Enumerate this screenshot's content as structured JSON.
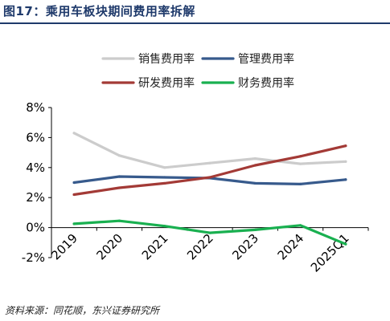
{
  "header": {
    "title": "图17：乘用车板块期间费用率拆解"
  },
  "footer": {
    "source": "资料来源：同花顺，东兴证券研究所"
  },
  "chart_data": {
    "type": "line",
    "title": "图17：乘用车板块期间费用率拆解",
    "xlabel": "",
    "ylabel": "",
    "categories": [
      "2019",
      "2020",
      "2021",
      "2022",
      "2023",
      "2024",
      "2025Q1"
    ],
    "ylim": [
      -2,
      8
    ],
    "yticks": [
      -2,
      0,
      2,
      4,
      6,
      8
    ],
    "ytick_labels": [
      "-2%",
      "0%",
      "2%",
      "4%",
      "6%",
      "8%"
    ],
    "grid": false,
    "legend_position": "top",
    "series": [
      {
        "name": "销售费用率",
        "color": "#cccccc",
        "values": [
          6.3,
          4.8,
          4.0,
          4.3,
          4.6,
          4.25,
          4.4
        ]
      },
      {
        "name": "管理费用率",
        "color": "#375a8c",
        "values": [
          3.0,
          3.4,
          3.35,
          3.3,
          2.95,
          2.9,
          3.2
        ]
      },
      {
        "name": "研发费用率",
        "color": "#a33a36",
        "values": [
          2.2,
          2.65,
          2.95,
          3.35,
          4.15,
          4.75,
          5.45
        ]
      },
      {
        "name": "财务费用率",
        "color": "#19b050",
        "values": [
          0.25,
          0.45,
          0.1,
          -0.35,
          -0.15,
          0.15,
          -1.1
        ]
      }
    ]
  }
}
